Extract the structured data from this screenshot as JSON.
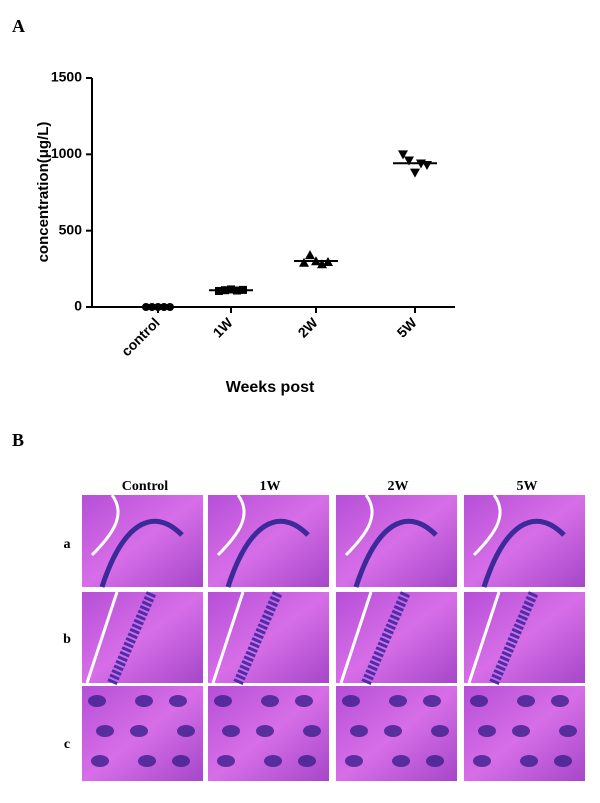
{
  "panel_labels": [
    "A",
    "B"
  ],
  "chart_data": {
    "type": "scatter",
    "x_label": "Weeks post",
    "y_label": "concentration(μg/L)",
    "categories": [
      "control",
      "1W",
      "2W",
      "5W"
    ],
    "markers": [
      "circle",
      "square",
      "triangle",
      "triangle-down"
    ],
    "points": [
      [
        0,
        0,
        0,
        0,
        0
      ],
      [
        105,
        110,
        115,
        108,
        112
      ],
      [
        290,
        340,
        300,
        280,
        295
      ],
      [
        1000,
        960,
        880,
        940,
        930
      ]
    ],
    "means": [
      0,
      110,
      301,
      942
    ],
    "color": "#000000",
    "ylim": [
      0,
      1500
    ],
    "yticks": [
      0,
      500,
      1000,
      1500
    ]
  },
  "histology": {
    "columns": [
      "Control",
      "1W",
      "2W",
      "5W"
    ],
    "rows": [
      "a",
      "b",
      "c"
    ]
  }
}
